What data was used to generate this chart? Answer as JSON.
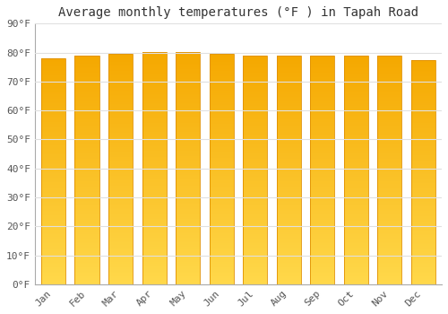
{
  "title": "Average monthly temperatures (°F ) in Tapah Road",
  "months": [
    "Jan",
    "Feb",
    "Mar",
    "Apr",
    "May",
    "Jun",
    "Jul",
    "Aug",
    "Sep",
    "Oct",
    "Nov",
    "Dec"
  ],
  "values": [
    78.0,
    79.0,
    79.7,
    80.1,
    80.2,
    79.5,
    79.0,
    79.0,
    79.0,
    78.8,
    78.8,
    77.5
  ],
  "ylim": [
    0,
    90
  ],
  "yticks": [
    0,
    10,
    20,
    30,
    40,
    50,
    60,
    70,
    80,
    90
  ],
  "bar_color_bottom": "#FFD84A",
  "bar_color_top": "#F5A800",
  "bar_edge_color": "#E09000",
  "background_color": "#ffffff",
  "plot_bg_color": "#ffffff",
  "grid_color": "#e0e0e0",
  "title_fontsize": 10,
  "tick_fontsize": 8,
  "font_family": "monospace",
  "figsize": [
    5.0,
    3.5
  ],
  "dpi": 100
}
